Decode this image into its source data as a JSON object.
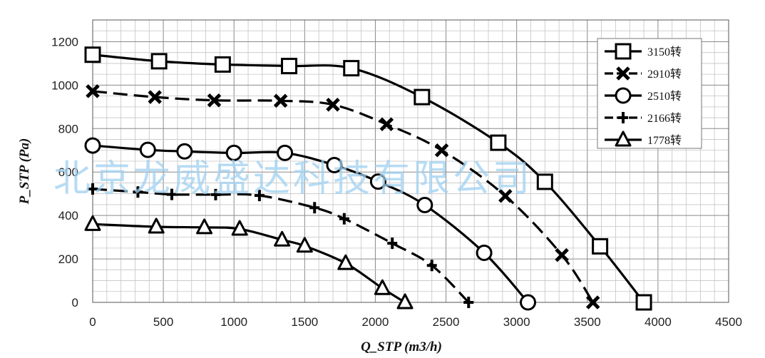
{
  "chart_data": {
    "type": "line",
    "xlabel": "Q_STP (m3/h)",
    "ylabel": "P_STP (Pa)",
    "xlim": [
      0,
      4500
    ],
    "ylim": [
      0,
      1300
    ],
    "x_ticks": [
      0,
      500,
      1000,
      1500,
      2000,
      2500,
      3000,
      3500,
      4000,
      4500
    ],
    "y_ticks": [
      0,
      200,
      400,
      600,
      800,
      1000,
      1200
    ],
    "grid": true,
    "legend_position": "top-right",
    "series": [
      {
        "name": "3150转",
        "marker": "square",
        "dash": "solid",
        "points": [
          [
            0,
            1140
          ],
          [
            470,
            1110
          ],
          [
            920,
            1095
          ],
          [
            1390,
            1088
          ],
          [
            1830,
            1078
          ],
          [
            2330,
            945
          ],
          [
            2870,
            735
          ],
          [
            3200,
            555
          ],
          [
            3590,
            258
          ],
          [
            3900,
            0
          ]
        ]
      },
      {
        "name": "2910转",
        "marker": "x",
        "dash": "dash",
        "points": [
          [
            0,
            972
          ],
          [
            440,
            945
          ],
          [
            860,
            930
          ],
          [
            1330,
            928
          ],
          [
            1700,
            910
          ],
          [
            2080,
            820
          ],
          [
            2470,
            700
          ],
          [
            2920,
            490
          ],
          [
            3320,
            218
          ],
          [
            3540,
            0
          ]
        ]
      },
      {
        "name": "2510转",
        "marker": "circle",
        "dash": "solid",
        "points": [
          [
            0,
            722
          ],
          [
            390,
            702
          ],
          [
            650,
            695
          ],
          [
            1000,
            688
          ],
          [
            1360,
            688
          ],
          [
            1710,
            632
          ],
          [
            2020,
            556
          ],
          [
            2350,
            448
          ],
          [
            2770,
            228
          ],
          [
            3080,
            0
          ]
        ]
      },
      {
        "name": "2166转",
        "marker": "plus",
        "dash": "dash",
        "points": [
          [
            0,
            522
          ],
          [
            320,
            508
          ],
          [
            560,
            497
          ],
          [
            870,
            496
          ],
          [
            1180,
            492
          ],
          [
            1570,
            436
          ],
          [
            1780,
            385
          ],
          [
            2120,
            272
          ],
          [
            2400,
            170
          ],
          [
            2660,
            0
          ]
        ]
      },
      {
        "name": "1778转",
        "marker": "triangle",
        "dash": "solid",
        "points": [
          [
            0,
            360
          ],
          [
            450,
            348
          ],
          [
            790,
            345
          ],
          [
            1040,
            338
          ],
          [
            1340,
            288
          ],
          [
            1500,
            260
          ],
          [
            1790,
            180
          ],
          [
            2050,
            65
          ],
          [
            2210,
            0
          ]
        ]
      }
    ]
  },
  "watermark": "北京龙威盛达科技有限公司"
}
